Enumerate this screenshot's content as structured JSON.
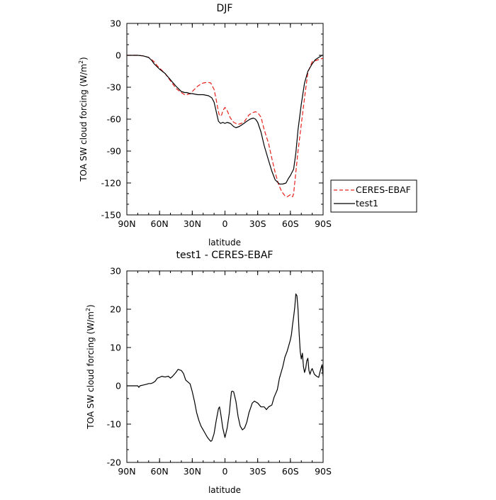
{
  "chart_data": [
    {
      "type": "line",
      "title": "DJF",
      "xlabel": "latitude",
      "ylabel_main": "TOA SW cloud forcing (W/m",
      "ylabel_sup": "2",
      "ylabel_end": ")",
      "xlim": [
        90,
        -90
      ],
      "ylim": [
        -150,
        30
      ],
      "xticks": [
        {
          "value": 90,
          "label": "90N"
        },
        {
          "value": 60,
          "label": "60N"
        },
        {
          "value": 30,
          "label": "30N"
        },
        {
          "value": 0,
          "label": "0"
        },
        {
          "value": -30,
          "label": "30S"
        },
        {
          "value": -60,
          "label": "60S"
        },
        {
          "value": -90,
          "label": "90S"
        }
      ],
      "yticks": [
        30,
        0,
        -30,
        -60,
        -90,
        -120,
        -150
      ],
      "legend": {
        "placement": "right",
        "entries": [
          {
            "name": "CERES-EBAF",
            "color": "#e8201a",
            "dash": true
          },
          {
            "name": "test1",
            "color": "#000000",
            "dash": false
          }
        ]
      },
      "series": [
        {
          "name": "CERES-EBAF",
          "color": "#e8201a",
          "dash": true,
          "x": [
            90,
            80,
            75,
            70,
            65,
            62,
            60,
            55,
            50,
            45,
            40,
            37,
            35,
            32,
            30,
            27,
            25,
            22,
            20,
            17,
            15,
            13,
            12,
            10,
            8,
            6,
            5,
            3,
            2,
            0,
            -2,
            -5,
            -8,
            -10,
            -12,
            -15,
            -18,
            -20,
            -22,
            -25,
            -28,
            -30,
            -33,
            -36,
            -40,
            -43,
            -46,
            -49,
            -52,
            -55,
            -57,
            -60,
            -62,
            -63,
            -65,
            -67,
            -70,
            -73,
            -76,
            -80,
            -83,
            -86,
            -89,
            -90
          ],
          "y": [
            0,
            0,
            -0.5,
            -2,
            -6,
            -10,
            -12,
            -17,
            -24,
            -31,
            -35,
            -37,
            -37,
            -36,
            -34,
            -31,
            -29,
            -27,
            -26,
            -25.5,
            -25.5,
            -26,
            -28,
            -32,
            -42,
            -53,
            -57,
            -56,
            -52,
            -49,
            -52,
            -59,
            -63,
            -64,
            -65,
            -64,
            -62,
            -59,
            -56,
            -54,
            -53,
            -54,
            -58,
            -70,
            -83,
            -97,
            -110,
            -121,
            -128,
            -132,
            -133,
            -131,
            -133,
            -130,
            -110,
            -90,
            -65,
            -40,
            -16,
            -6,
            -5,
            -4,
            -3,
            -3
          ]
        },
        {
          "name": "test1",
          "color": "#000000",
          "dash": false,
          "x": [
            90,
            80,
            75,
            70,
            67,
            65,
            62,
            60,
            55,
            50,
            45,
            40,
            37,
            35,
            32,
            30,
            25,
            20,
            15,
            12,
            10,
            8,
            6,
            4,
            2,
            0,
            -2,
            -5,
            -8,
            -10,
            -13,
            -16,
            -20,
            -23,
            -26,
            -28,
            -30,
            -33,
            -36,
            -40,
            -43,
            -46,
            -50,
            -53,
            -56,
            -58,
            -60,
            -63,
            -65,
            -67,
            -70,
            -73,
            -76,
            -80,
            -83,
            -86,
            -89,
            -90
          ],
          "y": [
            0,
            0,
            -0.5,
            -2,
            -5,
            -8,
            -11,
            -13,
            -17,
            -23,
            -29,
            -34,
            -35,
            -35,
            -36,
            -36,
            -37,
            -37,
            -38,
            -40,
            -44,
            -53,
            -62,
            -64,
            -63,
            -64,
            -63,
            -64,
            -67,
            -68,
            -67,
            -65,
            -62,
            -60,
            -59,
            -60,
            -63,
            -72,
            -85,
            -99,
            -109,
            -117,
            -121,
            -121,
            -120,
            -116,
            -113,
            -107,
            -92,
            -70,
            -46,
            -26,
            -15,
            -8,
            -4,
            -2,
            0,
            0
          ]
        }
      ]
    },
    {
      "type": "line",
      "title": "test1 - CERES-EBAF",
      "xlabel": "latitude",
      "ylabel_main": "TOA SW cloud forcing (W/m",
      "ylabel_sup": "2",
      "ylabel_end": ")",
      "xlim": [
        90,
        -90
      ],
      "ylim": [
        -20,
        30
      ],
      "xticks": [
        {
          "value": 90,
          "label": "90N"
        },
        {
          "value": 60,
          "label": "60N"
        },
        {
          "value": 30,
          "label": "30N"
        },
        {
          "value": 0,
          "label": "0"
        },
        {
          "value": -30,
          "label": "30S"
        },
        {
          "value": -60,
          "label": "60S"
        },
        {
          "value": -90,
          "label": "90S"
        }
      ],
      "yticks": [
        30,
        20,
        10,
        0,
        -10,
        -20
      ],
      "series": [
        {
          "name": "test1 - CERES-EBAF",
          "color": "#000000",
          "dash": false,
          "x": [
            90,
            80,
            79,
            78,
            75,
            72,
            70,
            68,
            66,
            64,
            62,
            60,
            58,
            55,
            52,
            50,
            48,
            45,
            43,
            40,
            38,
            36,
            34,
            32,
            30,
            28,
            26,
            24,
            22,
            20,
            18,
            16,
            14,
            13,
            12,
            10,
            8,
            6,
            5,
            4,
            2,
            0,
            -2,
            -4,
            -5,
            -6,
            -7,
            -8,
            -10,
            -12,
            -14,
            -16,
            -18,
            -20,
            -22,
            -25,
            -27,
            -30,
            -33,
            -36,
            -38,
            -40,
            -43,
            -45,
            -48,
            -50,
            -53,
            -55,
            -57,
            -59,
            -60,
            -61,
            -62,
            -63,
            -64,
            -65,
            -66,
            -67,
            -68,
            -69,
            -70,
            -71,
            -72,
            -73,
            -74,
            -75,
            -76,
            -77,
            -78,
            -79,
            -80,
            -82,
            -84,
            -86,
            -87,
            -88,
            -89,
            -90
          ],
          "y": [
            0,
            0,
            -0.4,
            0,
            0.2,
            0.4,
            0.6,
            0.6,
            0.8,
            1.2,
            2,
            2.2,
            2.5,
            2.3,
            2.5,
            2,
            2.5,
            3.5,
            4.3,
            4,
            3.2,
            1.5,
            1,
            0.5,
            -1.5,
            -4,
            -7,
            -9,
            -10.5,
            -11.5,
            -12.5,
            -13.5,
            -14.2,
            -14.5,
            -14.3,
            -12.5,
            -9,
            -6,
            -5.5,
            -7,
            -11,
            -13.5,
            -11,
            -7,
            -4,
            -1.5,
            -1.4,
            -1.6,
            -4,
            -8,
            -10.5,
            -11.5,
            -11,
            -9.5,
            -7,
            -4.5,
            -4,
            -4.5,
            -5.5,
            -5.5,
            -6.2,
            -5.5,
            -5,
            -3,
            -1,
            2,
            5,
            7.5,
            9,
            11,
            12,
            13.5,
            16,
            18,
            20.5,
            24,
            23.5,
            20,
            14,
            9,
            7,
            8.5,
            5,
            3.5,
            4.5,
            6.5,
            7.2,
            4,
            3,
            4,
            4.5,
            3,
            2.5,
            2.2,
            3.5,
            4.5,
            5.5,
            2.5
          ]
        }
      ]
    }
  ]
}
